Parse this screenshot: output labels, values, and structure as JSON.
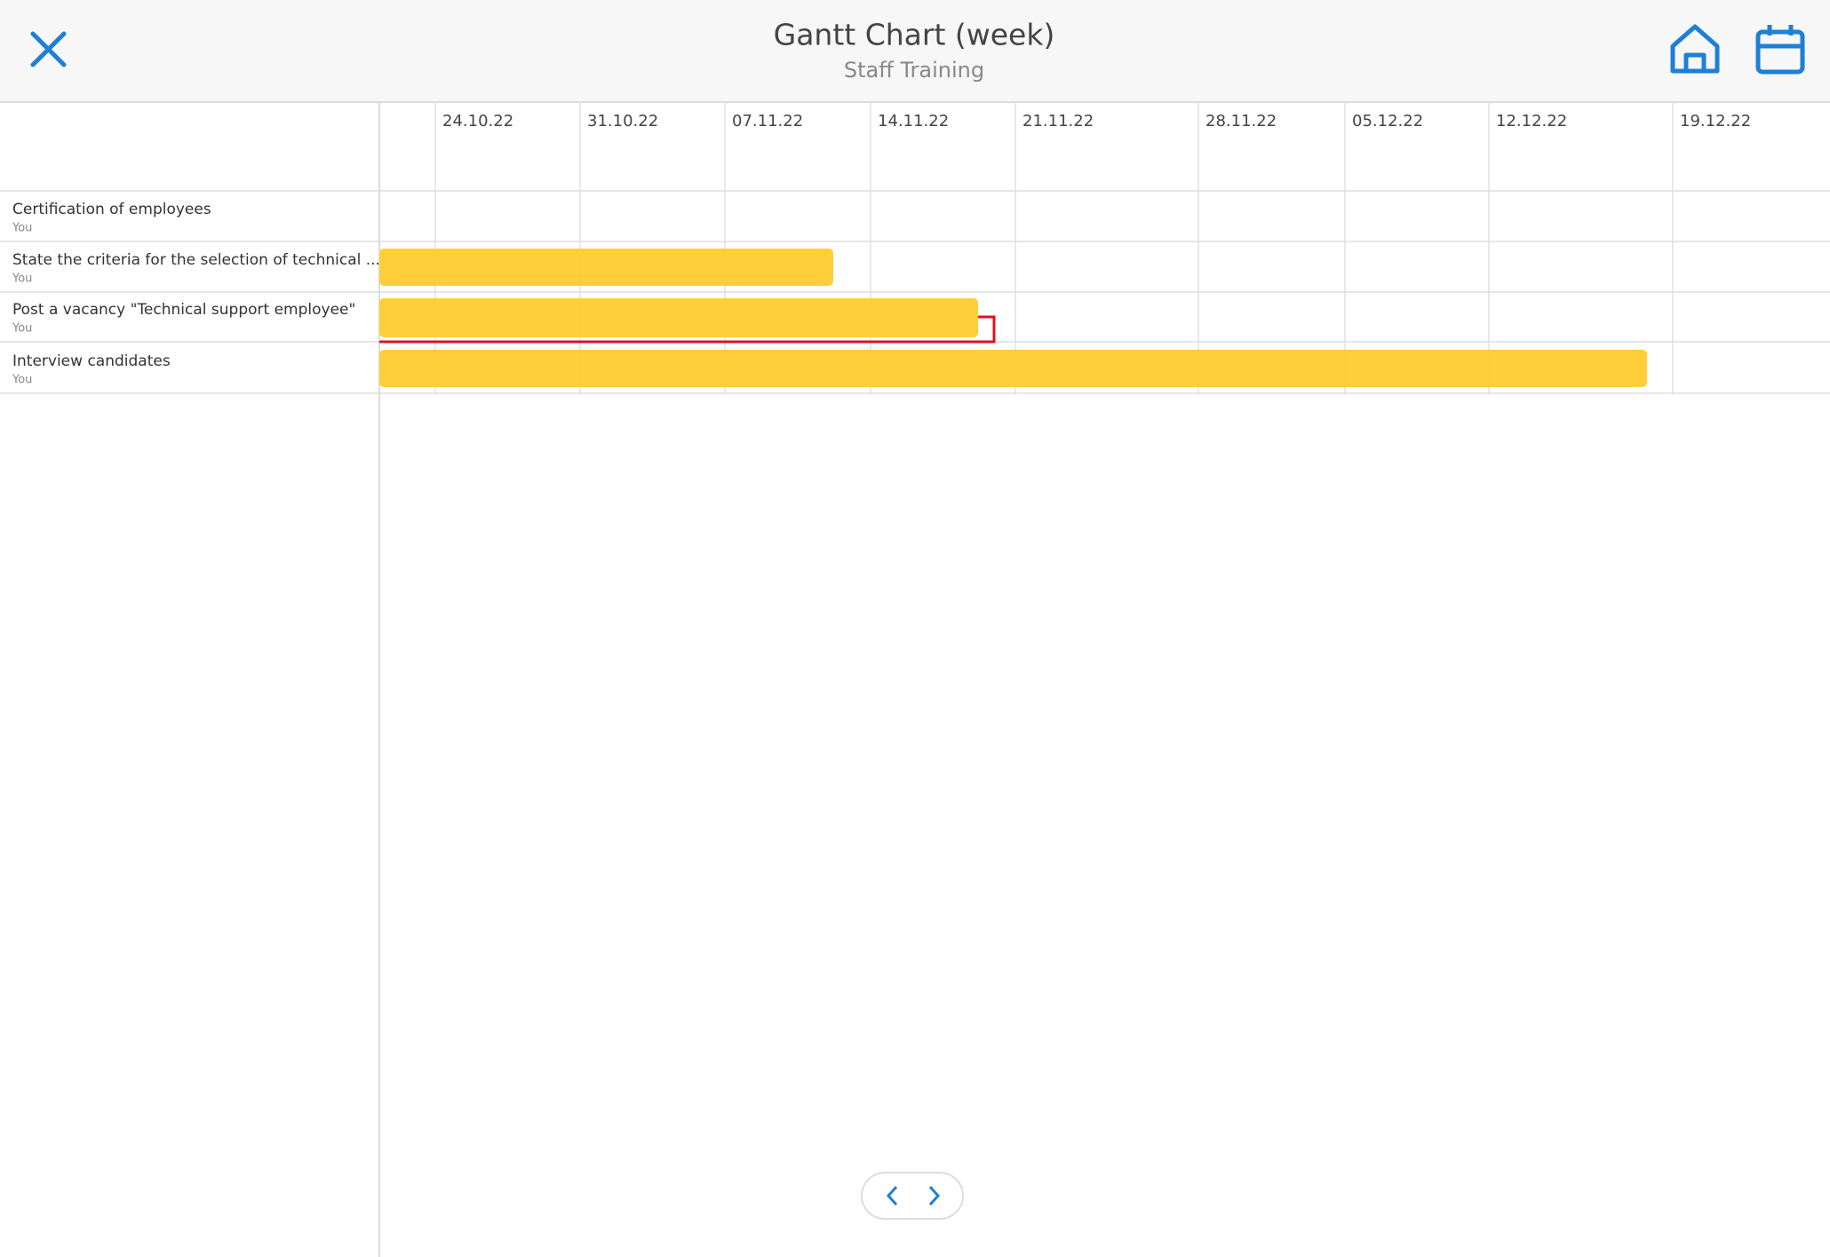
{
  "header": {
    "title": "Gantt Chart (week)",
    "subtitle": "Staff Training"
  },
  "timeline": {
    "dates": [
      "24.10.22",
      "31.10.22",
      "07.11.22",
      "14.11.22",
      "21.11.22",
      "28.11.22",
      "05.12.22",
      "12.12.22",
      "19.12.22"
    ]
  },
  "tasks": [
    {
      "name": "Certification of employees",
      "assignee": "You"
    },
    {
      "name": "State the criteria for the selection of technical ...",
      "assignee": "You"
    },
    {
      "name": "Post a vacancy \"Technical support employee\"",
      "assignee": "You"
    },
    {
      "name": "Interview candidates",
      "assignee": "You"
    }
  ]
}
